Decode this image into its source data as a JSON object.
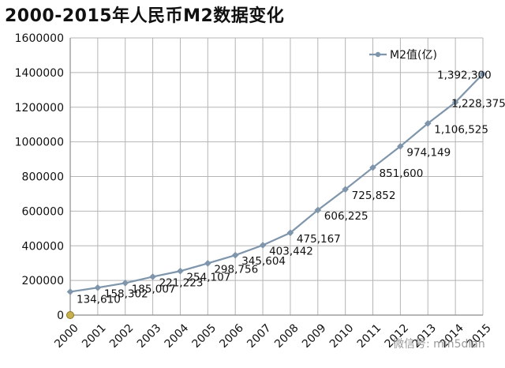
{
  "title": "2000-2015年人民币M2数据变化",
  "watermark": "微信号: min5dian",
  "colors": {
    "line": "#7f95ab",
    "grid": "#b5b5b5",
    "text": "#111111"
  },
  "chart_data": {
    "type": "line",
    "title": "2000-2015年人民币M2数据变化",
    "xlabel": "",
    "ylabel": "",
    "grid": true,
    "legend_position": "top-right",
    "ylim": [
      0,
      1600000
    ],
    "yticks": [
      0,
      200000,
      400000,
      600000,
      800000,
      1000000,
      1200000,
      1400000,
      1600000
    ],
    "x": [
      "2000",
      "2001",
      "2002",
      "2003",
      "2004",
      "2005",
      "2006",
      "2007",
      "2008",
      "2009",
      "2010",
      "2011",
      "2012",
      "2013",
      "2014",
      "2015"
    ],
    "series": [
      {
        "name": "M2值(亿)",
        "values": [
          134610,
          158302,
          185007,
          221223,
          254107,
          298756,
          345604,
          403442,
          475167,
          606225,
          725852,
          851600,
          974149,
          1106525,
          1228375,
          1392300
        ],
        "labels": [
          "134,610",
          "158,302",
          "185,007",
          "221,223",
          "254,107",
          "298,756",
          "345,604",
          "403,442",
          "475,167",
          "606,225",
          "725,852",
          "851,600",
          "974,149",
          "1,106,525",
          "1,228,375",
          "1,392,300"
        ]
      }
    ]
  }
}
